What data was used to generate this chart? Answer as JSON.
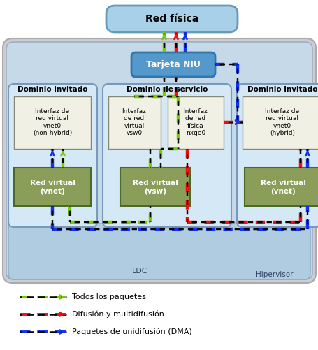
{
  "title": "Red física",
  "niu_label": "Tarjeta NIU",
  "domain_left_title": "Dominio invitado",
  "domain_center_title": "Dominio de servicio",
  "domain_right_title": "Dominio invitado",
  "box_left_top_label": "Interfaz de\nred virtual\nvnet0\n(non-hybrid)",
  "box_center_top_left_label": "Interfaz\nde red\nvirtual\nvsw0",
  "box_center_top_right_label": "Interfaz\nde red\nfísica\nnxge0",
  "box_right_top_label": "Interfaz de\nred virtual\nvnet0\n(hybrid)",
  "box_left_bot_label": "Red virtual\n(vnet)",
  "box_center_bot_label": "Red virtual\n(vsw)",
  "box_right_bot_label": "Red virtual\n(vnet)",
  "ldc_label": "LDC",
  "hypervisor_label": "Hipervisor",
  "legend_green": "Todos los paquetes",
  "legend_red": "Difusión y multidifusión",
  "legend_blue": "Paquetes de unidifusión (DMA)",
  "color_green": "#77cc00",
  "color_red": "#ee1111",
  "color_blue": "#1133ee",
  "color_black_dash": "#111111",
  "figsize": [
    4.56,
    5.01
  ],
  "dpi": 100
}
